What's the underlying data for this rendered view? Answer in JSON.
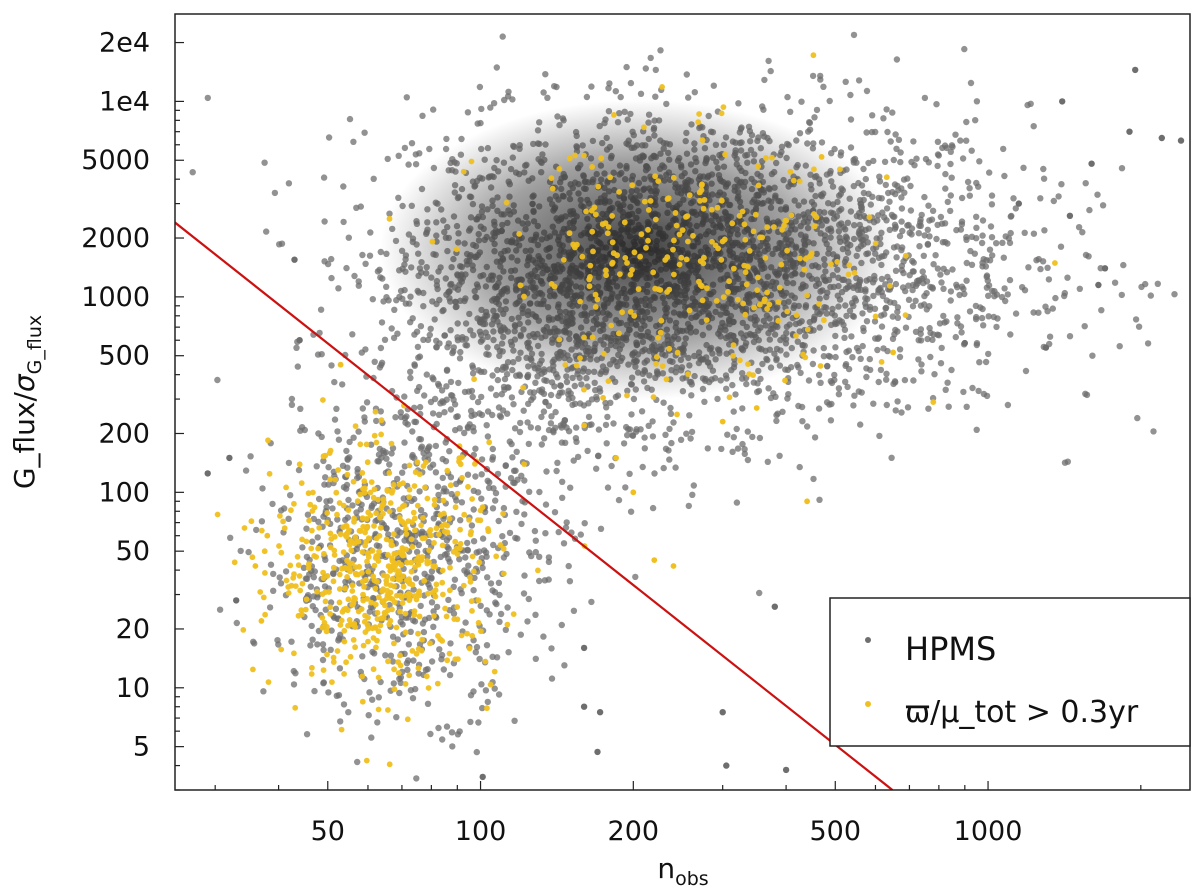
{
  "chart_data": {
    "type": "scatter",
    "xscale": "log",
    "yscale": "log",
    "xlim": [
      25,
      2500
    ],
    "ylim": [
      3,
      28000
    ],
    "xlabel": {
      "main": "n",
      "sub": "obs"
    },
    "ylabel": {
      "main": "G_flux/",
      "sigma": "σ",
      "sub": "G_flux"
    },
    "xticks": [
      {
        "value": 50,
        "label": "50"
      },
      {
        "value": 100,
        "label": "100"
      },
      {
        "value": 200,
        "label": "200"
      },
      {
        "value": 500,
        "label": "500"
      },
      {
        "value": 1000,
        "label": "1000"
      }
    ],
    "yticks": [
      {
        "value": 5,
        "label": "5"
      },
      {
        "value": 10,
        "label": "10"
      },
      {
        "value": 20,
        "label": "20"
      },
      {
        "value": 50,
        "label": "50"
      },
      {
        "value": 100,
        "label": "100"
      },
      {
        "value": 200,
        "label": "200"
      },
      {
        "value": 500,
        "label": "500"
      },
      {
        "value": 1000,
        "label": "1000"
      },
      {
        "value": 2000,
        "label": "2000"
      },
      {
        "value": 5000,
        "label": "5000"
      },
      {
        "value": 10000,
        "label": "1e4"
      },
      {
        "value": 20000,
        "label": "2e4"
      }
    ],
    "colors": {
      "hpms": "#6e6e6e",
      "parallax": "#f0c020",
      "cut_line": "#cc1111",
      "density_core": "#2a2a2a"
    },
    "series": [
      {
        "name": "HPMS",
        "color": "#6e6e6e",
        "clusters": [
          {
            "x_center": 300,
            "y_center": 1500,
            "x_spread": 0.3,
            "y_spread": 0.4,
            "count": 2600
          },
          {
            "x_center": 130,
            "y_center": 700,
            "x_spread": 0.17,
            "y_spread": 0.45,
            "count": 900
          },
          {
            "x_center": 70,
            "y_center": 45,
            "x_spread": 0.14,
            "y_spread": 0.38,
            "count": 700
          }
        ],
        "outliers": [
          {
            "x": 29,
            "y": 125
          },
          {
            "x": 32,
            "y": 150
          },
          {
            "x": 33,
            "y": 28
          },
          {
            "x": 43,
            "y": 1550
          },
          {
            "x": 44,
            "y": 600
          },
          {
            "x": 101,
            "y": 3.5
          },
          {
            "x": 160,
            "y": 16
          },
          {
            "x": 160,
            "y": 8
          },
          {
            "x": 170,
            "y": 4.7
          },
          {
            "x": 172,
            "y": 7.5
          },
          {
            "x": 300,
            "y": 7.5
          },
          {
            "x": 305,
            "y": 4
          },
          {
            "x": 400,
            "y": 3.8
          },
          {
            "x": 380,
            "y": 26
          },
          {
            "x": 1150,
            "y": 3000
          },
          {
            "x": 1300,
            "y": 550
          },
          {
            "x": 1450,
            "y": 2600
          },
          {
            "x": 1600,
            "y": 4800
          },
          {
            "x": 1650,
            "y": 1150
          },
          {
            "x": 1700,
            "y": 1400
          },
          {
            "x": 1900,
            "y": 7000
          },
          {
            "x": 1950,
            "y": 14500
          },
          {
            "x": 2200,
            "y": 6500
          },
          {
            "x": 2400,
            "y": 6300
          },
          {
            "x": 1400,
            "y": 10000
          },
          {
            "x": 900,
            "y": 580
          }
        ]
      },
      {
        "name": "ϖ/μ_tot > 0.3yr",
        "color": "#f0c020",
        "clusters": [
          {
            "x_center": 65,
            "y_center": 42,
            "x_spread": 0.11,
            "y_spread": 0.3,
            "count": 550
          },
          {
            "x_center": 260,
            "y_center": 1400,
            "x_spread": 0.2,
            "y_spread": 0.33,
            "count": 260
          }
        ],
        "outliers": [
          {
            "x": 37,
            "y": 22
          },
          {
            "x": 36,
            "y": 42
          },
          {
            "x": 38,
            "y": 60
          },
          {
            "x": 53,
            "y": 450
          },
          {
            "x": 470,
            "y": 5200
          },
          {
            "x": 440,
            "y": 90
          },
          {
            "x": 650,
            "y": 520
          },
          {
            "x": 240,
            "y": 42
          },
          {
            "x": 220,
            "y": 45
          },
          {
            "x": 200,
            "y": 100
          },
          {
            "x": 185,
            "y": 150
          },
          {
            "x": 160,
            "y": 220
          },
          {
            "x": 300,
            "y": 230
          },
          {
            "x": 350,
            "y": 270
          }
        ]
      }
    ],
    "reference_line": {
      "slope": -1.9,
      "points": [
        {
          "x": 25,
          "y": 2400
        },
        {
          "x": 648,
          "y": 3
        }
      ]
    },
    "legend": {
      "position": "bottom-right",
      "entries": [
        {
          "label": "HPMS",
          "color": "#6e6e6e"
        },
        {
          "label": "ϖ/μ_tot > 0.3yr",
          "color": "#f0c020"
        }
      ]
    }
  }
}
